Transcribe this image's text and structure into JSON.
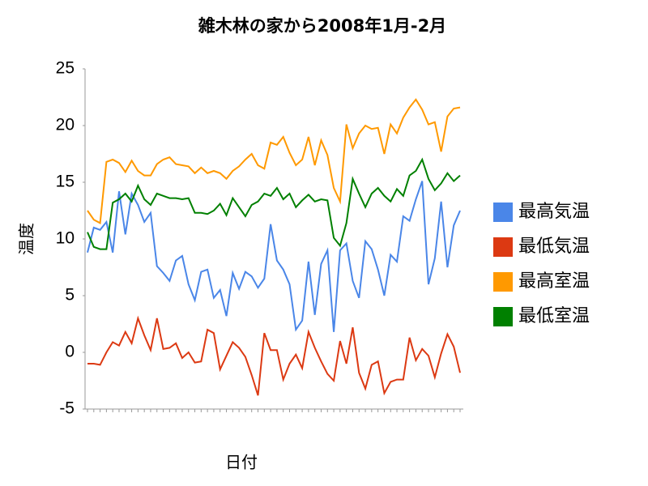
{
  "chart_data": {
    "type": "line",
    "title": "雑木林の家から2008年1月-2月",
    "x_label": "日付",
    "y_label": "温度",
    "categories": [
      null,
      null,
      null,
      null,
      null,
      null,
      null,
      null,
      null,
      null,
      null,
      null,
      null,
      null,
      null,
      null,
      null,
      null,
      null,
      null,
      null,
      null,
      null,
      null,
      null,
      null,
      null,
      null,
      null,
      null,
      null,
      null,
      null,
      null,
      null,
      null,
      null,
      null,
      null,
      null,
      null,
      null,
      null,
      null,
      null,
      null,
      null,
      null,
      null,
      null,
      null,
      null,
      null,
      null,
      null,
      null,
      null,
      null,
      null,
      null
    ],
    "series": [
      {
        "name": "最高気温",
        "color": "#4a86e8",
        "values": [
          8.8,
          11,
          10.8,
          11.5,
          8.8,
          14.2,
          10.4,
          14,
          13,
          11.5,
          12.3,
          7.6,
          7,
          6.3,
          8.1,
          8.5,
          6,
          4.6,
          7.1,
          7.3,
          4.8,
          5.5,
          3.2,
          7,
          5.6,
          7.1,
          6.7,
          5.7,
          6.5,
          11.3,
          8.1,
          7.3,
          6,
          2,
          2.8,
          8,
          3.3,
          7.8,
          9,
          1.8,
          9,
          9.6,
          6.3,
          4.8,
          9.8,
          9.1,
          7.3,
          5,
          8.6,
          8,
          12,
          11.6,
          13.5,
          15.1,
          6,
          8.3,
          13.3,
          7.5,
          11.2,
          12.5
        ]
      },
      {
        "name": "最低気温",
        "color": "#dc3912",
        "values": [
          -1,
          -1,
          -1.1,
          0,
          0.9,
          0.6,
          1.8,
          0.8,
          3,
          1.5,
          0.2,
          3,
          0.3,
          0.4,
          0.8,
          -0.5,
          0,
          -0.9,
          -0.8,
          2,
          1.7,
          -1.5,
          -0.3,
          0.9,
          0.4,
          -0.4,
          -2,
          -3.8,
          1.7,
          0.2,
          0.2,
          -2.4,
          -1,
          -0.2,
          -1.4,
          1.8,
          0.4,
          -0.8,
          -1.9,
          -2.5,
          1,
          -1,
          2.2,
          -1.8,
          -3.2,
          -1.1,
          -0.8,
          -3.6,
          -2.6,
          -2.4,
          -2.4,
          1.3,
          -0.7,
          0.3,
          -0.3,
          -2.2,
          -0.1,
          1.6,
          0.5,
          -1.8
        ]
      },
      {
        "name": "最高室温",
        "color": "#ff9900",
        "values": [
          12.5,
          11.7,
          11.4,
          16.8,
          17,
          16.7,
          15.9,
          16.9,
          16,
          15.6,
          15.6,
          16.6,
          17,
          17.2,
          16.6,
          16.5,
          16.4,
          15.8,
          16.3,
          15.8,
          16,
          15.8,
          15.3,
          16,
          16.4,
          17,
          17.5,
          16.5,
          16.2,
          18.5,
          18.3,
          19,
          17.6,
          16.5,
          17,
          19,
          16.5,
          18.7,
          17.4,
          14.5,
          13.3,
          20.1,
          18,
          19.3,
          20,
          19.7,
          19.8,
          17.5,
          20.1,
          19.3,
          20.7,
          21.6,
          22.3,
          21.4,
          20.1,
          20.3,
          17.7,
          20.8,
          21.5,
          21.6
        ]
      },
      {
        "name": "最低室温",
        "color": "#008000",
        "values": [
          10.6,
          9.3,
          9.1,
          9.1,
          13.2,
          13.5,
          14,
          13.3,
          14.7,
          13.5,
          13,
          14,
          13.8,
          13.6,
          13.6,
          13.5,
          13.6,
          12.3,
          12.3,
          12.2,
          12.5,
          13.1,
          12.1,
          13.6,
          12.8,
          12,
          13,
          13.3,
          14,
          13.8,
          14.5,
          13.5,
          14,
          12.8,
          13.4,
          13.9,
          13.3,
          13.5,
          13.4,
          10.1,
          9.4,
          11.4,
          15.3,
          14,
          12.8,
          14,
          14.5,
          13.8,
          13.3,
          14.4,
          13.8,
          15.6,
          16,
          17,
          15.3,
          14.3,
          14.9,
          15.8,
          15.1,
          15.6
        ]
      }
    ],
    "ylim": [
      -5,
      25
    ],
    "yticks": [
      -5,
      0,
      5,
      10,
      15,
      20,
      25
    ],
    "legend": "right"
  }
}
